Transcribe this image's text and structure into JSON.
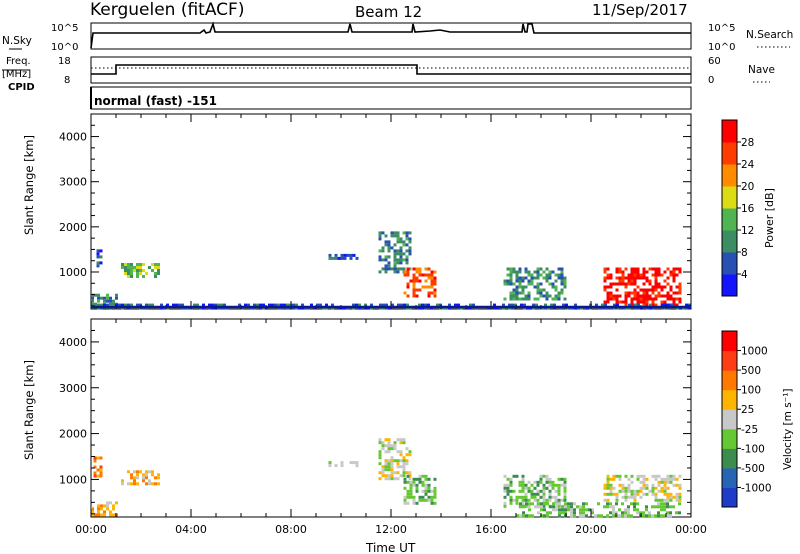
{
  "header": {
    "station": "Kerguelen (fitACF)",
    "beam": "Beam 12",
    "date": "11/Sep/2017"
  },
  "status_panel": {
    "nsky_label": "N.Sky",
    "nsky_ticks": [
      "10^5",
      "10^0"
    ],
    "nsearch_label": "N.Search",
    "nsearch_ticks": [
      "10^5",
      "10^0"
    ],
    "freq_label": "Freq.",
    "freq_unit": "[MHz]",
    "freq_ticks": [
      "18",
      "8"
    ],
    "nave_label": "Nave",
    "nave_ticks": [
      "60",
      "0"
    ],
    "cpid_label": "CPID",
    "cpid_value": "normal (fast) -151"
  },
  "chart_data": [
    {
      "type": "heatmap",
      "title": "",
      "ylabel": "Slant Range [km]",
      "xlabel": "",
      "ylim": [
        180,
        4500
      ],
      "y_ticks": [
        "1000",
        "2000",
        "3000",
        "4000"
      ],
      "x_ticks": [
        "00:00",
        "04:00",
        "08:00",
        "12:00",
        "16:00",
        "20:00",
        "00:00"
      ],
      "colorbar": {
        "label": "Power [dB]",
        "ticks": [
          "4",
          "8",
          "12",
          "16",
          "20",
          "24",
          "28"
        ],
        "colors": [
          "#1414ff",
          "#2850b4",
          "#3c8c64",
          "#50b450",
          "#dcdc14",
          "#ff8c00",
          "#ff3c00",
          "#ff0000"
        ]
      },
      "echo_regions": [
        {
          "t0": 0.0,
          "t1": 1.0,
          "r0": 250,
          "r1": 520,
          "level": 2
        },
        {
          "t0": 0.1,
          "t1": 0.4,
          "r0": 1050,
          "r1": 1500,
          "level": 1
        },
        {
          "t0": 1.2,
          "t1": 2.7,
          "r0": 900,
          "r1": 1200,
          "level": 3
        },
        {
          "t0": 9.5,
          "t1": 10.6,
          "r0": 1270,
          "r1": 1400,
          "level": 1
        },
        {
          "t0": 11.5,
          "t1": 12.8,
          "r0": 1000,
          "r1": 1900,
          "level": 2
        },
        {
          "t0": 12.5,
          "t1": 13.8,
          "r0": 500,
          "r1": 1100,
          "level": 6
        },
        {
          "t0": 16.5,
          "t1": 19.0,
          "r0": 400,
          "r1": 1100,
          "level": 2
        },
        {
          "t0": 20.5,
          "t1": 23.6,
          "r0": 250,
          "r1": 1100,
          "level": 7
        },
        {
          "t0": 0.0,
          "t1": 24.0,
          "r0": 180,
          "r1": 300,
          "level": 1
        }
      ]
    },
    {
      "type": "heatmap",
      "title": "",
      "ylabel": "Slant Range [km]",
      "xlabel": "Time UT",
      "ylim": [
        180,
        4500
      ],
      "y_ticks": [
        "1000",
        "2000",
        "3000",
        "4000"
      ],
      "x_ticks": [
        "00:00",
        "04:00",
        "08:00",
        "12:00",
        "16:00",
        "20:00",
        "00:00"
      ],
      "colorbar": {
        "label": "Velocity [m s⁻¹]",
        "ticks": [
          "1000",
          "500",
          "100",
          "25",
          "-25",
          "-100",
          "-500",
          "-1000"
        ],
        "colors": [
          "#1e3cc8",
          "#2864b4",
          "#3c8c50",
          "#64c832",
          "#c8c8c8",
          "#ffb400",
          "#ff7800",
          "#ff3c14",
          "#ff0000"
        ]
      },
      "echo_regions": [
        {
          "t0": 0.0,
          "t1": 1.0,
          "r0": 250,
          "r1": 520,
          "level": 5
        },
        {
          "t0": 0.1,
          "t1": 0.4,
          "r0": 1050,
          "r1": 1500,
          "level": 6
        },
        {
          "t0": 1.2,
          "t1": 2.7,
          "r0": 900,
          "r1": 1200,
          "level": 5
        },
        {
          "t0": 9.5,
          "t1": 10.6,
          "r0": 1270,
          "r1": 1400,
          "level": 4
        },
        {
          "t0": 11.5,
          "t1": 12.8,
          "r0": 1000,
          "r1": 1900,
          "level": 4
        },
        {
          "t0": 12.5,
          "t1": 13.8,
          "r0": 500,
          "r1": 1100,
          "level": 3
        },
        {
          "t0": 16.5,
          "t1": 19.0,
          "r0": 400,
          "r1": 1100,
          "level": 3
        },
        {
          "t0": 20.5,
          "t1": 23.6,
          "r0": 550,
          "r1": 1100,
          "level": 4
        },
        {
          "t0": 17.0,
          "t1": 23.5,
          "r0": 200,
          "r1": 500,
          "level": 3
        }
      ]
    }
  ]
}
